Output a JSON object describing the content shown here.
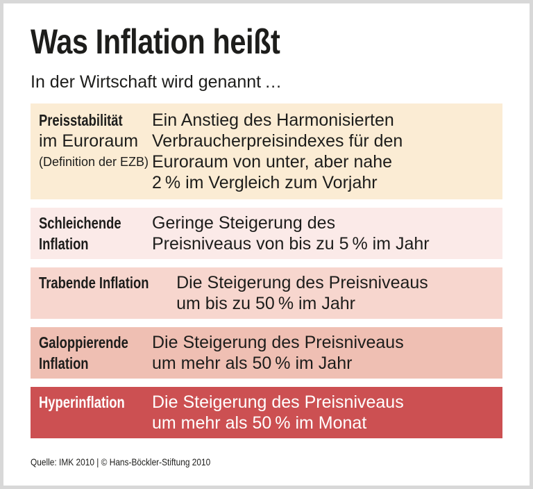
{
  "header": {
    "title": "Was Inflation heißt",
    "subtitle": "In der Wirtschaft wird genannt …"
  },
  "table": {
    "rows": [
      {
        "term": "Preisstabilität",
        "term_sub": "im Euroraum",
        "term_note": "(Definition der EZB)",
        "definition": "Ein Anstieg des Harmonisierten\nVerbraucherpreisindexes für den\nEuroraum von unter, aber nahe\n2 % im Vergleich zum Vorjahr",
        "bg": "#fbecd4",
        "fg": "#1d1d1b"
      },
      {
        "term": "Schleichende\nInflation",
        "definition": "Geringe Steigerung des\nPreisniveaus von bis zu 5 % im Jahr",
        "bg": "#fbeae8",
        "fg": "#1d1d1b"
      },
      {
        "term": "Trabende Inflation",
        "definition": "Die Steigerung des Preisniveaus\num bis zu 50 % im Jahr",
        "bg": "#f7d6ce",
        "fg": "#1d1d1b"
      },
      {
        "term": "Galoppierende\nInflation",
        "definition": "Die Steigerung des Preisniveaus\num mehr als 50 % im Jahr",
        "bg": "#efbfb3",
        "fg": "#1d1d1b"
      },
      {
        "term": "Hyperinflation",
        "definition": "Die Steigerung des Preisniveaus\num mehr als 50 % im Monat",
        "bg": "#cc5052",
        "fg": "#ffffff"
      }
    ]
  },
  "footer": {
    "source": "Quelle: IMK 2010 | © Hans-Böckler-Stiftung 2010"
  },
  "colors": {
    "frame_border": "#d8d8d8",
    "background": "#ffffff",
    "text": "#1d1d1b",
    "row_backgrounds": [
      "#fbecd4",
      "#fbeae8",
      "#f7d6ce",
      "#efbfb3",
      "#cc5052"
    ],
    "hyperinflation_text": "#ffffff"
  },
  "chart_data": {
    "type": "table",
    "title": "Was Inflation heißt",
    "subtitle": "In der Wirtschaft wird genannt …",
    "rows": [
      [
        "Preisstabilität im Euroraum (Definition der EZB)",
        "Ein Anstieg des Harmonisierten Verbraucherpreisindexes für den Euroraum von unter, aber nahe 2 % im Vergleich zum Vorjahr"
      ],
      [
        "Schleichende Inflation",
        "Geringe Steigerung des Preisniveaus von bis zu 5 % im Jahr"
      ],
      [
        "Trabende Inflation",
        "Die Steigerung des Preisniveaus um bis zu 50 % im Jahr"
      ],
      [
        "Galoppierende Inflation",
        "Die Steigerung des Preisniveaus um mehr als 50 % im Jahr"
      ],
      [
        "Hyperinflation",
        "Die Steigerung des Preisniveaus um mehr als 50 % im Monat"
      ]
    ],
    "annotation": "Quelle: IMK 2010 | © Hans-Böckler-Stiftung 2010",
    "layout_hint": "severity color scale from cream (#fbecd4) to red (#cc5052), top to bottom"
  }
}
